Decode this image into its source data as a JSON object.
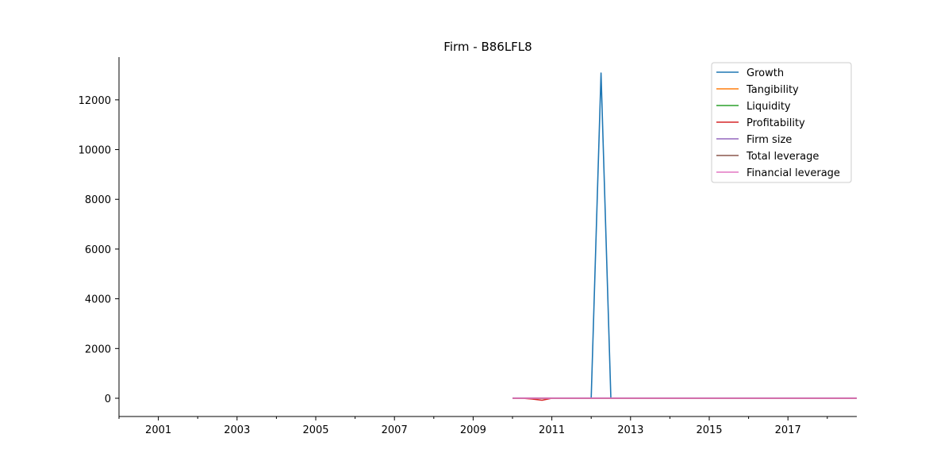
{
  "chart_data": {
    "type": "line",
    "title": "Firm - B86LFL8",
    "xlabel": "",
    "ylabel": "",
    "xlim": [
      2000,
      2018.75
    ],
    "ylim": [
      -700,
      13800
    ],
    "x_ticks": [
      "2001",
      "2003",
      "2005",
      "2007",
      "2009",
      "2011",
      "2013",
      "2015",
      "2017"
    ],
    "x_tick_values": [
      2001,
      2003,
      2005,
      2007,
      2009,
      2011,
      2013,
      2015,
      2017
    ],
    "y_ticks": [
      "0",
      "2000",
      "4000",
      "6000",
      "8000",
      "10000",
      "12000"
    ],
    "y_tick_values": [
      0,
      2000,
      4000,
      6000,
      8000,
      10000,
      12000
    ],
    "legend_position": "top-right",
    "grid": false,
    "x": [
      2010.0,
      2010.25,
      2010.5,
      2010.75,
      2011.0,
      2011.25,
      2011.5,
      2011.75,
      2012.0,
      2012.25,
      2012.5,
      2012.75,
      2013.0,
      2013.25,
      2013.5,
      2013.75,
      2014.0,
      2014.25,
      2014.5,
      2014.75,
      2015.0,
      2015.25,
      2015.5,
      2015.75,
      2016.0,
      2016.25,
      2016.5,
      2016.75,
      2017.0,
      2017.25,
      2017.5,
      2017.75,
      2018.0,
      2018.25,
      2018.5,
      2018.75
    ],
    "series": [
      {
        "name": "Growth",
        "color": "#1f77b4",
        "values": [
          0,
          0,
          0,
          0,
          0,
          0,
          0,
          0,
          0,
          13080,
          0,
          0,
          0,
          0,
          0,
          0,
          0,
          0,
          0,
          0,
          0,
          0,
          0,
          0,
          0,
          0,
          0,
          0,
          0,
          0,
          0,
          0,
          0,
          0,
          0,
          0
        ]
      },
      {
        "name": "Tangibility",
        "color": "#ff7f0e",
        "values": [
          0.3,
          0.3,
          0.3,
          0.3,
          0.3,
          0.3,
          0.3,
          0.3,
          0.3,
          0.3,
          0.3,
          0.3,
          0.3,
          0.3,
          0.3,
          0.3,
          0.3,
          0.3,
          0.3,
          0.3,
          0.3,
          0.3,
          0.3,
          0.3,
          0.3,
          0.3,
          0.3,
          0.3,
          0.3,
          0.3,
          0.3,
          0.3,
          0.3,
          0.3,
          0.3,
          0.3
        ]
      },
      {
        "name": "Liquidity",
        "color": "#2ca02c",
        "values": [
          1.2,
          1.2,
          1.2,
          1.2,
          1.2,
          1.2,
          1.2,
          1.2,
          1.2,
          1.2,
          1.2,
          1.2,
          1.2,
          1.2,
          1.2,
          1.2,
          1.2,
          1.2,
          1.2,
          1.2,
          1.2,
          1.2,
          1.2,
          1.2,
          1.2,
          1.2,
          1.2,
          1.2,
          1.2,
          1.2,
          1.2,
          1.2,
          1.2,
          1.2,
          1.2,
          1.2
        ]
      },
      {
        "name": "Profitability",
        "color": "#d62728",
        "values": [
          0,
          0,
          -30,
          -80,
          0,
          0,
          0,
          0,
          0,
          0,
          0,
          0,
          0,
          0,
          0,
          0,
          0,
          0,
          0,
          0,
          0,
          0,
          0,
          0,
          0,
          0,
          0,
          0,
          0,
          0,
          0,
          0,
          0,
          0,
          0,
          0
        ]
      },
      {
        "name": "Firm size",
        "color": "#9467bd",
        "values": [
          10,
          10,
          10,
          10,
          10,
          10,
          10,
          10,
          10,
          10,
          10,
          10,
          10,
          10,
          10,
          10,
          10,
          10,
          10,
          10,
          10,
          10,
          10,
          10,
          10,
          10,
          10,
          10,
          10,
          10,
          10,
          10,
          10,
          10,
          10,
          10
        ]
      },
      {
        "name": "Total leverage",
        "color": "#8c564b",
        "values": [
          0.5,
          0.5,
          0.5,
          0.5,
          0.5,
          0.5,
          0.5,
          0.5,
          0.5,
          0.5,
          0.5,
          0.5,
          0.5,
          0.5,
          0.5,
          0.5,
          0.5,
          0.5,
          0.5,
          0.5,
          0.5,
          0.5,
          0.5,
          0.5,
          0.5,
          0.5,
          0.5,
          0.5,
          0.5,
          0.5,
          0.5,
          0.5,
          0.5,
          0.5,
          0.5,
          0.5
        ]
      },
      {
        "name": "Financial leverage",
        "color": "#e377c2",
        "values": [
          2,
          2,
          2,
          2,
          2,
          2,
          2,
          2,
          2,
          2,
          2,
          2,
          2,
          2,
          2,
          2,
          2,
          2,
          2,
          2,
          2,
          2,
          2,
          2,
          2,
          2,
          2,
          2,
          2,
          2,
          2,
          2,
          2,
          2,
          2,
          2
        ]
      }
    ]
  }
}
